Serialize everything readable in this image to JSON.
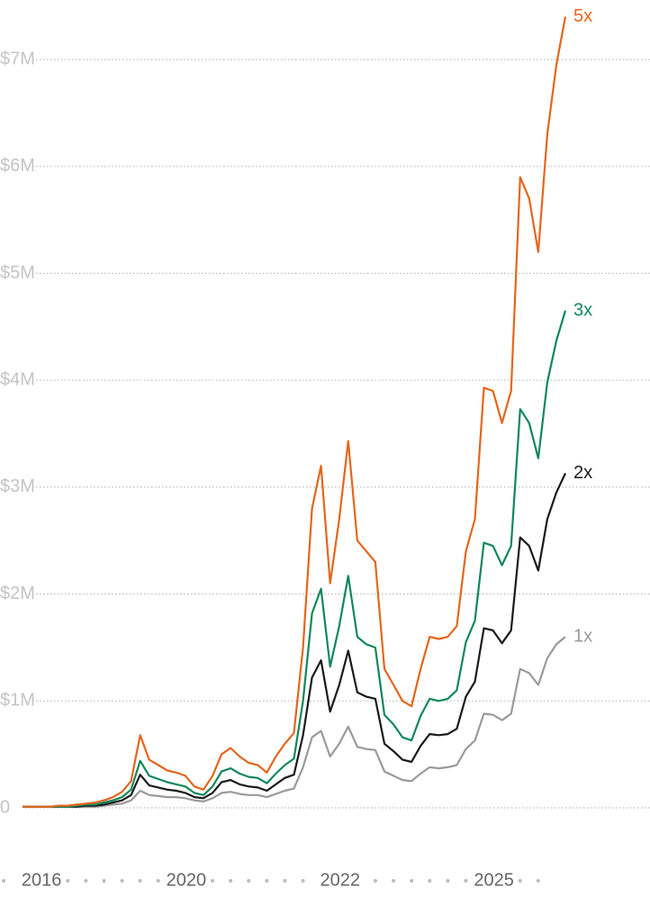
{
  "chart_data": {
    "type": "line",
    "categories": [
      null,
      null,
      "2016",
      null,
      null,
      null,
      null,
      null,
      null,
      null,
      null,
      null,
      null,
      null,
      null,
      null,
      null,
      null,
      "2020",
      null,
      null,
      null,
      null,
      null,
      null,
      null,
      null,
      null,
      null,
      null,
      null,
      null,
      null,
      null,
      null,
      "2022",
      null,
      null,
      null,
      null,
      null,
      null,
      null,
      null,
      null,
      null,
      null,
      null,
      null,
      null,
      null,
      null,
      "2025",
      null,
      null,
      null,
      null,
      null,
      null,
      null,
      null
    ],
    "ylim": [
      0,
      7400000
    ],
    "yticks": [
      0,
      {
        "value": 1000000,
        "label": "$1M"
      },
      {
        "value": 2000000,
        "label": "$2M"
      },
      {
        "value": 3000000,
        "label": "$3M"
      },
      {
        "value": 4000000,
        "label": "$4M"
      },
      {
        "value": 5000000,
        "label": "$5M"
      },
      {
        "value": 6000000,
        "label": "$6M"
      },
      {
        "value": 7000000,
        "label": "$7M"
      }
    ],
    "grid": true,
    "series": [
      {
        "name": "5x",
        "color": "#e4661d",
        "values": [
          10000,
          10000,
          10000,
          10000,
          20000,
          20000,
          30000,
          40000,
          50000,
          70000,
          100000,
          150000,
          250000,
          680000,
          450000,
          400000,
          350000,
          330000,
          300000,
          200000,
          170000,
          300000,
          500000,
          560000,
          480000,
          420000,
          400000,
          330000,
          480000,
          600000,
          700000,
          1500000,
          2800000,
          3200000,
          2100000,
          2700000,
          3430000,
          2500000,
          2400000,
          2300000,
          1300000,
          1150000,
          1000000,
          950000,
          1300000,
          1600000,
          1580000,
          1600000,
          1700000,
          2400000,
          2700000,
          3930000,
          3900000,
          3600000,
          3900000,
          5900000,
          5700000,
          5200000,
          6300000,
          6950000,
          7400000
        ]
      },
      {
        "name": "3x",
        "color": "#12875b",
        "values": [
          10000,
          10000,
          10000,
          10000,
          10000,
          10000,
          20000,
          30000,
          30000,
          50000,
          70000,
          100000,
          170000,
          440000,
          300000,
          270000,
          240000,
          220000,
          200000,
          140000,
          120000,
          200000,
          340000,
          370000,
          320000,
          290000,
          280000,
          230000,
          320000,
          400000,
          460000,
          1000000,
          1820000,
          2050000,
          1320000,
          1700000,
          2170000,
          1600000,
          1530000,
          1500000,
          870000,
          780000,
          660000,
          630000,
          860000,
          1020000,
          1000000,
          1020000,
          1100000,
          1550000,
          1750000,
          2480000,
          2450000,
          2270000,
          2450000,
          3730000,
          3600000,
          3270000,
          3980000,
          4370000,
          4650000
        ]
      },
      {
        "name": "2x",
        "color": "#1a1a1a",
        "values": [
          10000,
          10000,
          10000,
          10000,
          10000,
          10000,
          10000,
          20000,
          20000,
          30000,
          50000,
          70000,
          120000,
          310000,
          210000,
          190000,
          170000,
          160000,
          140000,
          100000,
          90000,
          140000,
          240000,
          260000,
          220000,
          200000,
          190000,
          160000,
          220000,
          280000,
          310000,
          680000,
          1220000,
          1380000,
          900000,
          1150000,
          1470000,
          1080000,
          1040000,
          1020000,
          600000,
          530000,
          450000,
          430000,
          580000,
          690000,
          680000,
          690000,
          740000,
          1040000,
          1180000,
          1680000,
          1660000,
          1540000,
          1660000,
          2530000,
          2450000,
          2220000,
          2700000,
          2950000,
          3130000
        ]
      },
      {
        "name": "1x",
        "color": "#9a9a9a",
        "values": [
          10000,
          10000,
          10000,
          10000,
          10000,
          10000,
          10000,
          10000,
          10000,
          20000,
          30000,
          40000,
          70000,
          160000,
          120000,
          110000,
          100000,
          100000,
          90000,
          70000,
          60000,
          90000,
          140000,
          150000,
          130000,
          120000,
          120000,
          100000,
          130000,
          160000,
          180000,
          380000,
          660000,
          720000,
          480000,
          600000,
          760000,
          570000,
          550000,
          540000,
          340000,
          300000,
          260000,
          250000,
          320000,
          380000,
          370000,
          380000,
          400000,
          550000,
          630000,
          880000,
          870000,
          820000,
          880000,
          1300000,
          1260000,
          1150000,
          1400000,
          1530000,
          1600000
        ]
      }
    ]
  }
}
